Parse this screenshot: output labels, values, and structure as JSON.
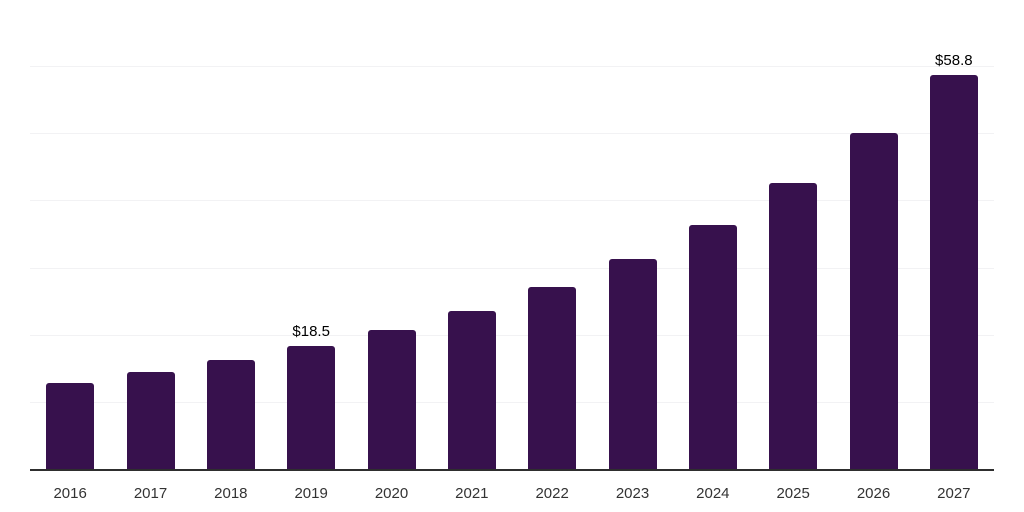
{
  "chart_data": {
    "type": "bar",
    "categories": [
      "2016",
      "2017",
      "2018",
      "2019",
      "2020",
      "2021",
      "2022",
      "2023",
      "2024",
      "2025",
      "2026",
      "2027"
    ],
    "values": [
      13.0,
      14.6,
      16.4,
      18.5,
      20.9,
      23.7,
      27.2,
      31.5,
      36.5,
      42.8,
      50.2,
      58.8
    ],
    "data_labels": [
      "",
      "",
      "",
      "$18.5",
      "",
      "",
      "",
      "",
      "",
      "",
      "",
      "$58.8"
    ],
    "title": "",
    "xlabel": "",
    "ylabel": "",
    "ylim": [
      0,
      70
    ],
    "gridline_step": 10,
    "grid": "horizontal-only",
    "legend": "none",
    "y_tick_labels": "none"
  },
  "style": {
    "bar_color": "#37114D",
    "background_color": "#ffffff",
    "gridline_color": "#f2f2f4",
    "axis_line_color": "#2e2e2e",
    "data_label_color": "#000000",
    "x_tick_label_color": "#333333"
  }
}
